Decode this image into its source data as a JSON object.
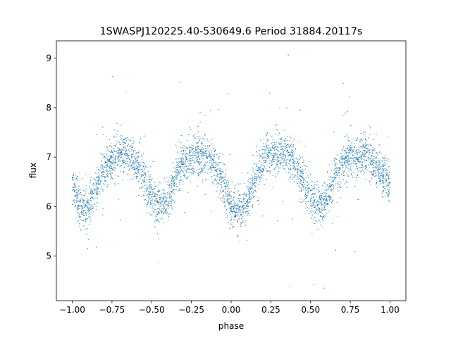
{
  "chart_data": {
    "type": "scatter",
    "title": "1SWASPJ120225.40-530649.6 Period 31884.20117s",
    "xlabel": "phase",
    "ylabel": "flux",
    "xlim": [
      -1.1,
      1.1
    ],
    "ylim": [
      4.1,
      9.35
    ],
    "xticks": [
      -1.0,
      -0.75,
      -0.5,
      -0.25,
      0.0,
      0.25,
      0.5,
      0.75,
      1.0
    ],
    "xtick_labels": [
      "−1.00",
      "−0.75",
      "−0.50",
      "−0.25",
      "0.00",
      "0.25",
      "0.50",
      "0.75",
      "1.00"
    ],
    "yticks": [
      5,
      6,
      7,
      8,
      9
    ],
    "ytick_labels": [
      "5",
      "6",
      "7",
      "8",
      "9"
    ],
    "grid": false,
    "marker_color": "#1f77b4",
    "series": [
      {
        "x": [
          -1.0,
          -0.95,
          -0.92,
          -0.88,
          -0.85,
          -0.8,
          -0.75,
          -0.7,
          -0.67,
          -0.64,
          -0.6,
          -0.55,
          -0.5,
          -0.47,
          -0.44,
          -0.41,
          -0.38,
          -0.35,
          -0.3,
          -0.25,
          -0.2,
          -0.17,
          -0.14,
          -0.1,
          -0.05,
          0.0,
          0.03,
          0.06,
          0.09,
          0.12,
          0.15,
          0.2,
          0.25,
          0.3,
          0.33,
          0.36,
          0.4,
          0.45,
          0.5,
          0.53,
          0.56,
          0.59,
          0.62,
          0.65,
          0.7,
          0.75,
          0.8,
          0.83,
          0.86,
          0.9,
          0.95,
          1.0
        ],
        "y": [
          6.45,
          6.0,
          5.92,
          6.1,
          6.35,
          6.75,
          6.95,
          7.08,
          7.1,
          7.07,
          6.92,
          6.6,
          6.2,
          6.05,
          6.0,
          6.05,
          6.3,
          6.6,
          6.88,
          7.0,
          7.05,
          7.02,
          6.98,
          6.8,
          6.45,
          6.05,
          5.92,
          5.9,
          6.0,
          6.25,
          6.55,
          6.9,
          7.05,
          7.1,
          7.08,
          7.02,
          6.85,
          6.55,
          6.2,
          6.08,
          6.05,
          6.1,
          6.3,
          6.6,
          6.88,
          7.0,
          7.05,
          7.03,
          6.98,
          6.85,
          6.65,
          6.45
        ]
      }
    ]
  }
}
